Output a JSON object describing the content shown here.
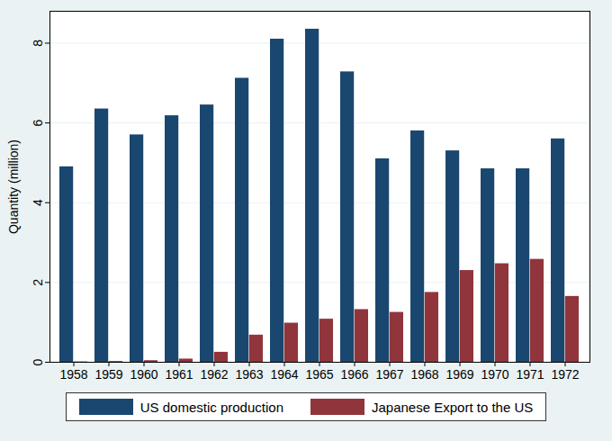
{
  "chart_data": {
    "type": "bar",
    "y_label": "Quantity (million)",
    "categories": [
      "1958",
      "1959",
      "1960",
      "1961",
      "1962",
      "1963",
      "1964",
      "1965",
      "1966",
      "1967",
      "1968",
      "1969",
      "1970",
      "1971",
      "1972"
    ],
    "series": [
      {
        "name": "US domestic production",
        "color": "#1a476f",
        "values": [
          4.9,
          6.35,
          5.7,
          6.18,
          6.45,
          7.12,
          8.1,
          8.35,
          7.28,
          5.1,
          5.8,
          5.3,
          4.85,
          4.85,
          5.6
        ]
      },
      {
        "name": "Japanese Export to the US",
        "color": "#90353b",
        "values": [
          0.01,
          0.02,
          0.04,
          0.08,
          0.25,
          0.68,
          0.98,
          1.08,
          1.32,
          1.25,
          1.75,
          2.3,
          2.47,
          2.58,
          1.65
        ]
      }
    ],
    "ylim": [
      0,
      8.8
    ],
    "yticks": [
      0,
      2,
      4,
      6,
      8
    ],
    "grid": true,
    "legend": "bottom"
  }
}
